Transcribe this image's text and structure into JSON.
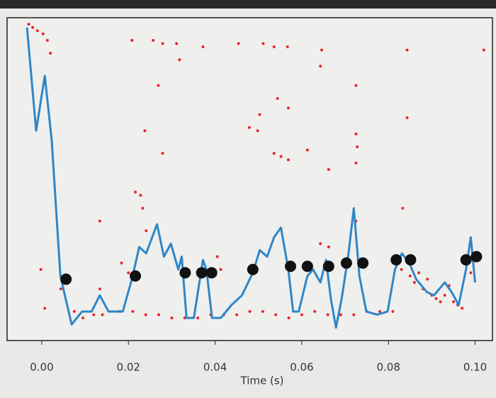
{
  "chart_data": {
    "type": "line",
    "xlabel": "Time (s)",
    "xlim": [
      -0.008,
      0.104
    ],
    "ylim": [
      0,
      1
    ],
    "xticks": [
      {
        "value": 0,
        "label": "0.00"
      },
      {
        "value": 0.02,
        "label": "0.02"
      },
      {
        "value": 0.04,
        "label": "0.04"
      },
      {
        "value": 0.06,
        "label": "0.06"
      },
      {
        "value": 0.08,
        "label": "0.08"
      },
      {
        "value": 0.1,
        "label": "0.10"
      }
    ],
    "grid": false,
    "series": [
      {
        "type": "scatter",
        "color": "#e8252a",
        "x": [
          -0.003,
          -0.0021,
          -0.001,
          0.0003,
          0.0013,
          0.002,
          0.0208,
          0.0257,
          0.0279,
          0.0311,
          0.0318,
          0.0372,
          0.0454,
          0.0511,
          0.0536,
          0.0567,
          0.0646,
          0.0643,
          0.0843,
          0.102,
          0.0269,
          0.0725,
          0.0544,
          0.0569,
          0.0503,
          0.0479,
          0.0498,
          0.0843,
          0.0238,
          0.0725,
          0.0279,
          0.0536,
          0.0552,
          0.0569,
          0.0613,
          0.0728,
          0.0662,
          0.0725,
          0.0216,
          0.0228,
          0.0134,
          0.0233,
          0.0241,
          0.0643,
          0.0662,
          0.0725,
          0.0833,
          -0.0002,
          0.0044,
          0.0184,
          0.02,
          0.0405,
          0.0413,
          0.0134,
          0.0007,
          0.0075,
          0.0095,
          0.012,
          0.014,
          0.018,
          0.021,
          0.024,
          0.027,
          0.03,
          0.033,
          0.036,
          0.039,
          0.042,
          0.045,
          0.048,
          0.051,
          0.054,
          0.057,
          0.06,
          0.063,
          0.066,
          0.069,
          0.072,
          0.075,
          0.078,
          0.081,
          0.083,
          0.085,
          0.086,
          0.087,
          0.088,
          0.089,
          0.09,
          0.091,
          0.092,
          0.093,
          0.094,
          0.095,
          0.096,
          0.097,
          0.099
        ],
        "values": [
          0.98,
          0.97,
          0.96,
          0.95,
          0.93,
          0.89,
          0.93,
          0.93,
          0.92,
          0.92,
          0.87,
          0.91,
          0.92,
          0.92,
          0.91,
          0.91,
          0.9,
          0.85,
          0.9,
          0.9,
          0.79,
          0.79,
          0.75,
          0.72,
          0.7,
          0.66,
          0.65,
          0.69,
          0.65,
          0.64,
          0.58,
          0.58,
          0.57,
          0.56,
          0.59,
          0.6,
          0.53,
          0.55,
          0.46,
          0.45,
          0.37,
          0.41,
          0.34,
          0.3,
          0.29,
          0.37,
          0.41,
          0.22,
          0.16,
          0.24,
          0.21,
          0.26,
          0.22,
          0.16,
          0.1,
          0.09,
          0.07,
          0.08,
          0.08,
          0.09,
          0.09,
          0.08,
          0.08,
          0.07,
          0.07,
          0.07,
          0.08,
          0.08,
          0.08,
          0.09,
          0.09,
          0.08,
          0.07,
          0.08,
          0.09,
          0.08,
          0.08,
          0.08,
          0.09,
          0.09,
          0.09,
          0.22,
          0.2,
          0.18,
          0.21,
          0.16,
          0.19,
          0.14,
          0.13,
          0.12,
          0.14,
          0.17,
          0.12,
          0.11,
          0.1,
          0.21
        ]
      },
      {
        "type": "line",
        "color": "#2f86c8",
        "x": [
          -0.0034,
          -0.0013,
          0.0007,
          0.0023,
          0.0043,
          0.0069,
          0.0093,
          0.0115,
          0.0134,
          0.0154,
          0.0187,
          0.0208,
          0.0225,
          0.0241,
          0.0266,
          0.0282,
          0.0298,
          0.0315,
          0.0323,
          0.0334,
          0.0351,
          0.0372,
          0.038,
          0.0393,
          0.0413,
          0.0438,
          0.0462,
          0.0487,
          0.0503,
          0.052,
          0.0536,
          0.0552,
          0.0569,
          0.058,
          0.0593,
          0.0613,
          0.0626,
          0.0643,
          0.0656,
          0.0667,
          0.0679,
          0.0692,
          0.0708,
          0.072,
          0.0733,
          0.0749,
          0.0774,
          0.0798,
          0.0815,
          0.0831,
          0.0848,
          0.0864,
          0.0889,
          0.0905,
          0.093,
          0.0946,
          0.0962,
          0.0979,
          0.099,
          0.1
        ],
        "values": [
          0.97,
          0.65,
          0.82,
          0.62,
          0.2,
          0.05,
          0.09,
          0.09,
          0.14,
          0.09,
          0.09,
          0.19,
          0.29,
          0.27,
          0.36,
          0.26,
          0.3,
          0.22,
          0.26,
          0.07,
          0.07,
          0.25,
          0.22,
          0.07,
          0.07,
          0.11,
          0.14,
          0.21,
          0.28,
          0.26,
          0.32,
          0.35,
          0.22,
          0.09,
          0.09,
          0.2,
          0.22,
          0.18,
          0.25,
          0.13,
          0.04,
          0.13,
          0.27,
          0.41,
          0.2,
          0.09,
          0.08,
          0.09,
          0.22,
          0.27,
          0.24,
          0.19,
          0.15,
          0.14,
          0.18,
          0.15,
          0.11,
          0.22,
          0.32,
          0.18
        ]
      },
      {
        "type": "dots",
        "color": "#111111",
        "x": [
          0.0056,
          0.0216,
          0.0331,
          0.0369,
          0.0392,
          0.0487,
          0.0574,
          0.0613,
          0.0662,
          0.0703,
          0.0741,
          0.0818,
          0.0851,
          0.0979,
          0.1003
        ],
        "values": [
          0.19,
          0.2,
          0.21,
          0.21,
          0.21,
          0.22,
          0.23,
          0.23,
          0.23,
          0.24,
          0.24,
          0.25,
          0.25,
          0.25,
          0.26
        ]
      }
    ]
  }
}
